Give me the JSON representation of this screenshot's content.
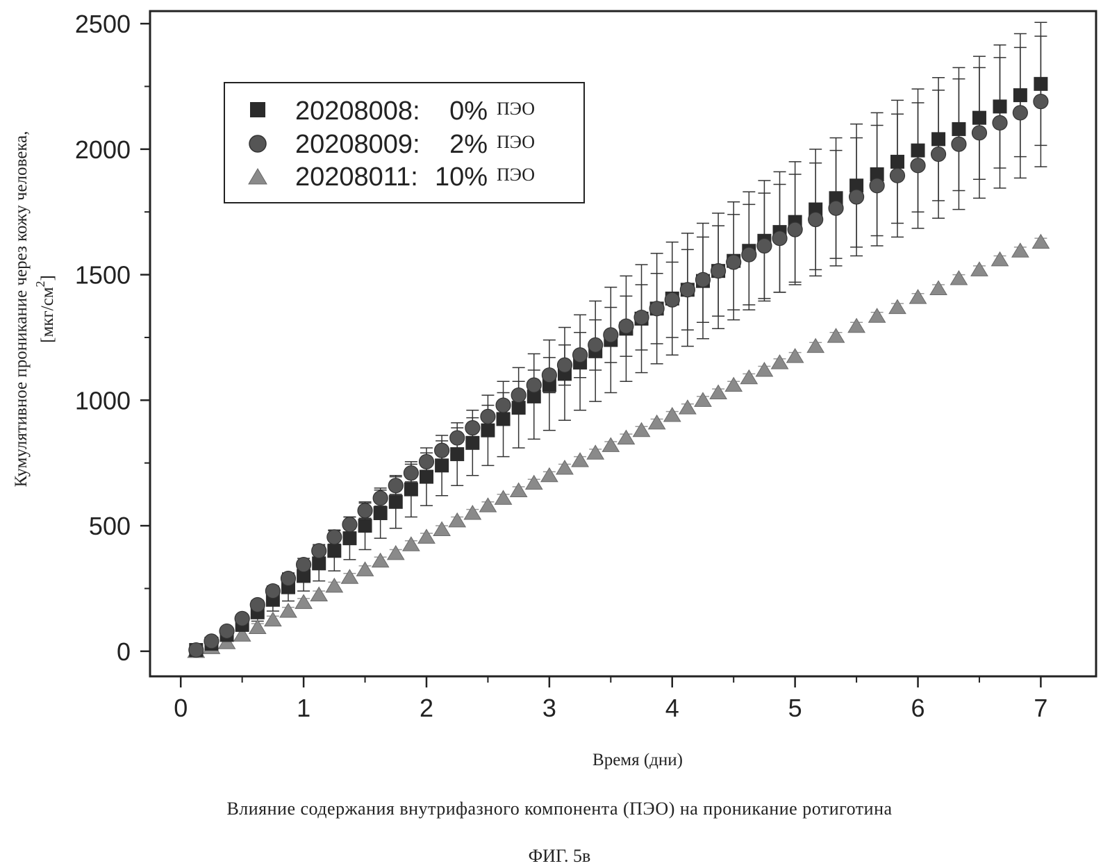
{
  "chart_data": {
    "type": "scatter",
    "ylabel_line1": "Кумулятивное проникание через кожу человека,",
    "ylabel_unit_prefix": "[мкг/см",
    "ylabel_unit_sup": "2",
    "ylabel_unit_suffix": "]",
    "xlabel": "Время (дни)",
    "xlim": [
      -0.25,
      7.45
    ],
    "ylim": [
      -100,
      2550
    ],
    "xticks": [
      0,
      1,
      2,
      3,
      4,
      5,
      6,
      7
    ],
    "yticks": [
      0,
      500,
      1000,
      1500,
      2000,
      2500
    ],
    "x_minor_step": 0.5,
    "y_minor_step": 250,
    "grid": false,
    "legend_position": "top-left",
    "series": [
      {
        "id": "20208008",
        "legend_id": "20208008:",
        "legend_pct": "0%",
        "legend_unit": "ПЭО",
        "marker": "square",
        "color": "#2b2b2b",
        "x": [
          0.125,
          0.25,
          0.375,
          0.5,
          0.625,
          0.75,
          0.875,
          1.0,
          1.125,
          1.25,
          1.375,
          1.5,
          1.625,
          1.75,
          1.875,
          2.0,
          2.125,
          2.25,
          2.375,
          2.5,
          2.625,
          2.75,
          2.875,
          3.0,
          3.125,
          3.25,
          3.375,
          3.5,
          3.625,
          3.75,
          3.875,
          4.0,
          4.125,
          4.25,
          4.375,
          4.5,
          4.625,
          4.75,
          4.875,
          5.0,
          5.167,
          5.333,
          5.5,
          5.667,
          5.833,
          6.0,
          6.167,
          6.333,
          6.5,
          6.667,
          6.833,
          7.0
        ],
        "y": [
          5,
          30,
          65,
          105,
          155,
          205,
          255,
          300,
          350,
          400,
          450,
          500,
          550,
          595,
          645,
          695,
          740,
          785,
          830,
          880,
          925,
          970,
          1015,
          1060,
          1105,
          1150,
          1195,
          1240,
          1285,
          1325,
          1365,
          1405,
          1440,
          1475,
          1515,
          1555,
          1595,
          1635,
          1670,
          1710,
          1760,
          1805,
          1855,
          1900,
          1950,
          1995,
          2040,
          2080,
          2125,
          2170,
          2215,
          2260
        ],
        "err": [
          5,
          10,
          15,
          25,
          35,
          45,
          55,
          60,
          70,
          80,
          85,
          95,
          100,
          105,
          110,
          115,
          120,
          125,
          130,
          140,
          150,
          160,
          170,
          180,
          185,
          190,
          200,
          210,
          210,
          215,
          220,
          225,
          225,
          230,
          230,
          235,
          235,
          240,
          240,
          240,
          240,
          240,
          245,
          245,
          245,
          245,
          245,
          245,
          245,
          245,
          245,
          245
        ]
      },
      {
        "id": "20208009",
        "legend_id": "20208009:",
        "legend_pct": "2%",
        "legend_unit": "ПЭО",
        "marker": "circle",
        "color": "#555555",
        "x": [
          0.125,
          0.25,
          0.375,
          0.5,
          0.625,
          0.75,
          0.875,
          1.0,
          1.125,
          1.25,
          1.375,
          1.5,
          1.625,
          1.75,
          1.875,
          2.0,
          2.125,
          2.25,
          2.375,
          2.5,
          2.625,
          2.75,
          2.875,
          3.0,
          3.125,
          3.25,
          3.375,
          3.5,
          3.625,
          3.75,
          3.875,
          4.0,
          4.125,
          4.25,
          4.375,
          4.5,
          4.625,
          4.75,
          4.875,
          5.0,
          5.167,
          5.333,
          5.5,
          5.667,
          5.833,
          6.0,
          6.167,
          6.333,
          6.5,
          6.667,
          6.833,
          7.0
        ],
        "y": [
          5,
          40,
          80,
          130,
          185,
          240,
          290,
          345,
          400,
          455,
          505,
          560,
          610,
          660,
          710,
          755,
          800,
          850,
          890,
          935,
          980,
          1020,
          1060,
          1100,
          1140,
          1180,
          1220,
          1260,
          1295,
          1330,
          1365,
          1400,
          1440,
          1480,
          1515,
          1550,
          1580,
          1615,
          1645,
          1680,
          1720,
          1765,
          1810,
          1855,
          1895,
          1935,
          1980,
          2020,
          2065,
          2105,
          2145,
          2190
        ],
        "err": [
          5,
          8,
          12,
          15,
          18,
          20,
          22,
          25,
          25,
          28,
          30,
          30,
          32,
          35,
          35,
          35,
          38,
          40,
          40,
          45,
          50,
          55,
          60,
          70,
          80,
          90,
          100,
          110,
          120,
          130,
          140,
          150,
          160,
          170,
          180,
          190,
          200,
          210,
          215,
          220,
          225,
          230,
          235,
          240,
          245,
          250,
          255,
          260,
          260,
          260,
          260,
          260
        ]
      },
      {
        "id": "20208011",
        "legend_id": "20208011:",
        "legend_pct": "10%",
        "legend_unit": "ПЭО",
        "marker": "triangle",
        "color": "#8a8a8a",
        "x": [
          0.125,
          0.25,
          0.375,
          0.5,
          0.625,
          0.75,
          0.875,
          1.0,
          1.125,
          1.25,
          1.375,
          1.5,
          1.625,
          1.75,
          1.875,
          2.0,
          2.125,
          2.25,
          2.375,
          2.5,
          2.625,
          2.75,
          2.875,
          3.0,
          3.125,
          3.25,
          3.375,
          3.5,
          3.625,
          3.75,
          3.875,
          4.0,
          4.125,
          4.25,
          4.375,
          4.5,
          4.625,
          4.75,
          4.875,
          5.0,
          5.167,
          5.333,
          5.5,
          5.667,
          5.833,
          6.0,
          6.167,
          6.333,
          6.5,
          6.667,
          6.833,
          7.0
        ],
        "y": [
          0,
          15,
          35,
          65,
          95,
          125,
          160,
          195,
          225,
          260,
          295,
          325,
          360,
          390,
          425,
          455,
          485,
          520,
          550,
          580,
          610,
          640,
          670,
          700,
          730,
          760,
          790,
          820,
          850,
          880,
          910,
          940,
          970,
          1000,
          1030,
          1060,
          1090,
          1120,
          1150,
          1175,
          1215,
          1255,
          1295,
          1335,
          1370,
          1410,
          1445,
          1485,
          1520,
          1560,
          1595,
          1630
        ],
        "err": [
          15,
          15,
          15,
          15,
          15,
          15,
          15,
          15,
          15,
          15,
          15,
          15,
          15,
          15,
          15,
          15,
          15,
          15,
          15,
          15,
          15,
          15,
          15,
          15,
          15,
          15,
          15,
          15,
          15,
          15,
          15,
          15,
          15,
          15,
          15,
          15,
          15,
          15,
          15,
          15,
          15,
          15,
          15,
          15,
          15,
          15,
          15,
          15,
          15,
          15,
          15,
          15
        ]
      }
    ]
  },
  "caption": "Влияние содержания внутрифазного компонента (ПЭО) на проникание ротиготина",
  "figure_number": "ФИГ. 5в"
}
